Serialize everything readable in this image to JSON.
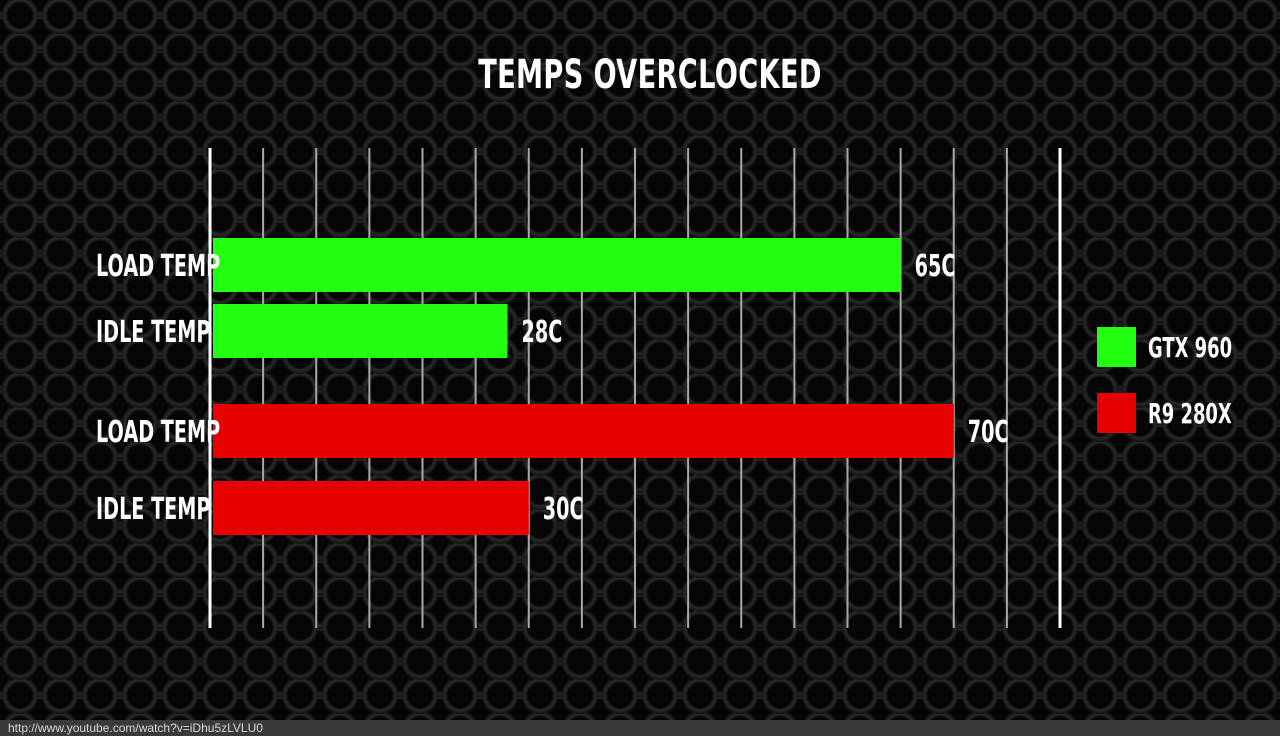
{
  "chart_data": {
    "type": "bar",
    "orientation": "horizontal",
    "title": "TEMPS OVERCLOCKED",
    "categories": [
      "LOAD TEMP",
      "IDLE TEMP",
      "LOAD TEMP",
      "IDLE TEMP"
    ],
    "bars": [
      {
        "category": "LOAD TEMP",
        "series": "GTX 960",
        "value": 65,
        "label": "65C"
      },
      {
        "category": "IDLE TEMP",
        "series": "GTX 960",
        "value": 28,
        "label": "28C"
      },
      {
        "category": "LOAD TEMP",
        "series": "R9 280X",
        "value": 70,
        "label": "70C"
      },
      {
        "category": "IDLE TEMP",
        "series": "R9 280X",
        "value": 30,
        "label": "30C"
      }
    ],
    "series": [
      {
        "name": "GTX 960",
        "color": "#22ff11"
      },
      {
        "name": "R9 280X",
        "color": "#e60000"
      }
    ],
    "xlim": [
      0,
      80
    ],
    "grid": true,
    "legend_position": "right"
  },
  "footer": {
    "url": "http://www.youtube.com/watch?v=iDhu5zLVLU0"
  }
}
